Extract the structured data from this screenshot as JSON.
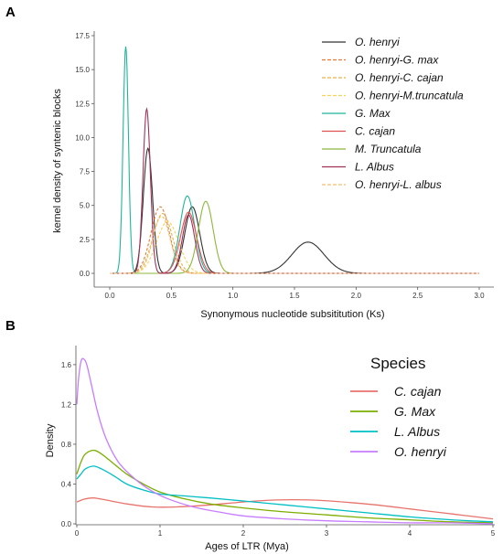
{
  "panels": {
    "a_label": "A",
    "b_label": "B"
  },
  "chart_data": [
    {
      "type": "line",
      "panel": "A",
      "xlabel": "Synonymous nucleotide subsititution (Ks)",
      "ylabel": "kernel density of syntenic blocks",
      "xlim": [
        0.0,
        3.0
      ],
      "ylim": [
        0.0,
        17.5
      ],
      "xticks": [
        "0.0",
        "0.5",
        "1.0",
        "1.5",
        "2.0",
        "2.5",
        "3.0"
      ],
      "yticks": [
        "0.0",
        "2.5",
        "5.0",
        "7.5",
        "10.0",
        "12.5",
        "15.0",
        "17.5"
      ],
      "grid": false,
      "legend_position": "top-right",
      "series": [
        {
          "name": "O. henryi",
          "color": "#333333",
          "dash": "solid",
          "peaks": [
            {
              "mu": 0.31,
              "sigma": 0.038,
              "height": 9.2
            },
            {
              "mu": 1.61,
              "sigma": 0.13,
              "height": 2.3
            },
            {
              "mu": 0.67,
              "sigma": 0.06,
              "height": 4.9
            }
          ]
        },
        {
          "name": "O. henryi-G. max",
          "color": "#e07b39",
          "dash": "dashed",
          "peaks": [
            {
              "mu": 0.41,
              "sigma": 0.075,
              "height": 4.9
            }
          ]
        },
        {
          "name": "O. henryi-C. cajan",
          "color": "#e8b04a",
          "dash": "dashed",
          "peaks": [
            {
              "mu": 0.43,
              "sigma": 0.08,
              "height": 4.4
            }
          ]
        },
        {
          "name": "O. henryi-M.truncatula",
          "color": "#f2d35b",
          "dash": "dashed",
          "peaks": [
            {
              "mu": 0.47,
              "sigma": 0.09,
              "height": 3.8
            }
          ]
        },
        {
          "name": "G. Max",
          "color": "#1fb59a",
          "dash": "solid",
          "peaks": [
            {
              "mu": 0.13,
              "sigma": 0.022,
              "height": 16.7
            },
            {
              "mu": 0.63,
              "sigma": 0.06,
              "height": 5.7
            }
          ]
        },
        {
          "name": "C. cajan",
          "color": "#e05252",
          "dash": "solid",
          "peaks": [
            {
              "mu": 0.64,
              "sigma": 0.065,
              "height": 4.5
            }
          ]
        },
        {
          "name": "M. Truncatula",
          "color": "#8cb83a",
          "dash": "solid",
          "peaks": [
            {
              "mu": 0.78,
              "sigma": 0.06,
              "height": 5.3
            }
          ]
        },
        {
          "name": "L. Albus",
          "color": "#a0335a",
          "dash": "solid",
          "peaks": [
            {
              "mu": 0.3,
              "sigma": 0.03,
              "height": 12.1
            },
            {
              "mu": 0.64,
              "sigma": 0.05,
              "height": 4.3
            }
          ]
        },
        {
          "name": "O. henryi-L. albus",
          "color": "#f0c070",
          "dash": "dashed",
          "peaks": [
            {
              "mu": 0.42,
              "sigma": 0.07,
              "height": 4.2
            }
          ]
        }
      ]
    },
    {
      "type": "line",
      "panel": "B",
      "xlabel": "Ages of LTR (Mya)",
      "ylabel": "Density",
      "xlim": [
        0,
        5
      ],
      "ylim": [
        0.0,
        1.7
      ],
      "xticks": [
        "0",
        "1",
        "2",
        "3",
        "4",
        "5"
      ],
      "yticks": [
        "0.0",
        "0.4",
        "0.8",
        "1.2",
        "1.6"
      ],
      "grid": false,
      "legend_position": "top-right",
      "legend_title": "Species",
      "series": [
        {
          "name": "C. cajan",
          "color": "#e8736c",
          "x": [
            0,
            0.1,
            0.2,
            0.35,
            0.6,
            0.9,
            1.2,
            1.6,
            2.0,
            2.4,
            2.8,
            3.2,
            3.6,
            4.0,
            4.4,
            4.8,
            5.0
          ],
          "y": [
            0.22,
            0.25,
            0.26,
            0.24,
            0.2,
            0.17,
            0.17,
            0.19,
            0.22,
            0.24,
            0.24,
            0.22,
            0.19,
            0.15,
            0.11,
            0.07,
            0.05
          ]
        },
        {
          "name": "G. Max",
          "color": "#7cae00",
          "x": [
            0,
            0.05,
            0.1,
            0.2,
            0.3,
            0.45,
            0.6,
            0.8,
            1.0,
            1.3,
            1.6,
            2.0,
            2.5,
            3.0,
            3.5,
            4.0,
            4.5,
            5.0
          ],
          "y": [
            0.5,
            0.62,
            0.7,
            0.74,
            0.7,
            0.6,
            0.5,
            0.4,
            0.32,
            0.25,
            0.2,
            0.16,
            0.12,
            0.09,
            0.06,
            0.04,
            0.02,
            0.01
          ]
        },
        {
          "name": "L. Albus",
          "color": "#00bfc4",
          "x": [
            0,
            0.05,
            0.1,
            0.2,
            0.3,
            0.45,
            0.6,
            0.8,
            1.0,
            1.3,
            1.6,
            2.0,
            2.5,
            3.0,
            3.5,
            4.0,
            4.5,
            5.0
          ],
          "y": [
            0.45,
            0.5,
            0.55,
            0.58,
            0.55,
            0.48,
            0.4,
            0.34,
            0.3,
            0.28,
            0.26,
            0.23,
            0.19,
            0.15,
            0.11,
            0.07,
            0.04,
            0.02
          ]
        },
        {
          "name": "O. henryi",
          "color": "#c77cff",
          "x": [
            0,
            0.02,
            0.05,
            0.08,
            0.12,
            0.18,
            0.25,
            0.35,
            0.5,
            0.7,
            0.9,
            1.1,
            1.4,
            1.7,
            2.0,
            2.5,
            3.0,
            3.5,
            4.0,
            4.5,
            5.0
          ],
          "y": [
            1.2,
            1.45,
            1.63,
            1.66,
            1.6,
            1.38,
            1.12,
            0.86,
            0.62,
            0.45,
            0.33,
            0.25,
            0.17,
            0.12,
            0.08,
            0.05,
            0.03,
            0.02,
            0.01,
            0.01,
            0.0
          ]
        }
      ]
    }
  ]
}
